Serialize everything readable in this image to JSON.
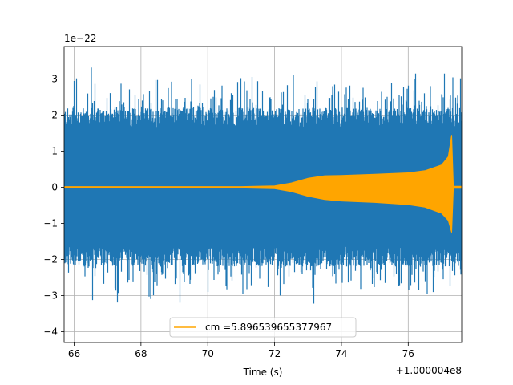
{
  "chart_data": {
    "type": "line",
    "xlabel": "Time (s)",
    "ylabel": "",
    "x_offset_label": "+1.000004e8",
    "y_scale_label": "1e−22",
    "xlim": [
      65.7,
      77.6
    ],
    "ylim": [
      -4.3,
      3.9
    ],
    "x_ticks": [
      66,
      68,
      70,
      72,
      74,
      76
    ],
    "x_tick_labels": [
      "66",
      "68",
      "70",
      "72",
      "74",
      "76"
    ],
    "y_ticks": [
      -4,
      -3,
      -2,
      -1,
      0,
      1,
      2,
      3
    ],
    "y_tick_labels": [
      "−4",
      "−3",
      "−2",
      "−1",
      "0",
      "1",
      "2",
      "3"
    ],
    "grid": true,
    "legend_placement": "lower-center",
    "series": [
      {
        "kind": "noise",
        "color": "#1f77b4",
        "typical_extent": [
          -2.2,
          2.2
        ],
        "peak_extent": [
          -3.9,
          3.55
        ]
      },
      {
        "name": "cm =5.896539655377967",
        "kind": "chirp",
        "color": "#ffa500",
        "x": [
          65.7,
          71.0,
          72.0,
          72.5,
          73.0,
          73.5,
          74.0,
          75.0,
          76.0,
          76.5,
          77.0,
          77.2,
          77.3,
          77.35,
          77.6
        ],
        "upper": [
          0.02,
          0.02,
          0.04,
          0.12,
          0.25,
          0.32,
          0.33,
          0.36,
          0.4,
          0.46,
          0.62,
          0.85,
          1.45,
          0.03,
          0.03
        ],
        "lower": [
          -0.02,
          -0.02,
          -0.04,
          -0.12,
          -0.25,
          -0.34,
          -0.38,
          -0.42,
          -0.48,
          -0.55,
          -0.72,
          -0.92,
          -1.25,
          -0.03,
          -0.03
        ]
      }
    ]
  }
}
